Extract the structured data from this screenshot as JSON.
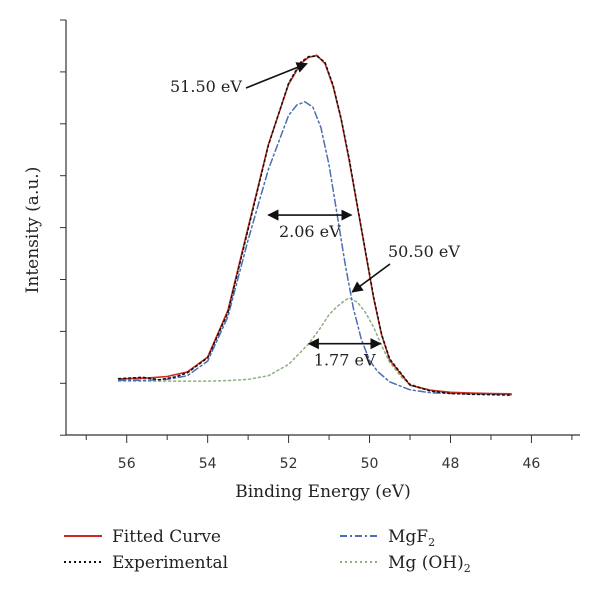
{
  "chart_data": {
    "type": "line",
    "title": "",
    "xlabel": "Binding Energy (eV)",
    "ylabel": "Intensity (a.u.)",
    "x_reversed": true,
    "xlim": [
      57.5,
      44.8
    ],
    "ylim": [
      0,
      100
    ],
    "xticks": [
      56,
      54,
      52,
      50,
      48,
      46
    ],
    "xtick_labels": [
      "56",
      "54",
      "52",
      "50",
      "48",
      "46"
    ],
    "y_tick_labels_shown": false,
    "grid": false,
    "legend_position": "bottom",
    "series": [
      {
        "key": "fitted",
        "name": "Fitted Curve",
        "color": "#cc2a1e",
        "dash": "solid",
        "x": [
          56.2,
          55.5,
          55.0,
          54.5,
          54.0,
          53.5,
          53.0,
          52.5,
          52.0,
          51.7,
          51.5,
          51.3,
          51.1,
          50.9,
          50.7,
          50.5,
          50.3,
          50.1,
          49.9,
          49.7,
          49.5,
          49.0,
          48.5,
          48.0,
          47.5,
          47.0,
          46.5
        ],
        "y": [
          13.5,
          13.7,
          14.1,
          15.2,
          18.8,
          30.0,
          50.0,
          70.0,
          84.5,
          89.5,
          91.0,
          91.5,
          89.5,
          84.0,
          76.0,
          66.0,
          55.0,
          44.0,
          33.0,
          24.0,
          18.0,
          12.0,
          10.8,
          10.3,
          10.1,
          10.0,
          9.9
        ]
      },
      {
        "key": "experimental",
        "name": "Experimental",
        "color": "#111111",
        "dash": "dotted",
        "x": [
          56.2,
          55.6,
          55.2,
          54.8,
          54.5,
          54.0,
          53.5,
          53.0,
          52.5,
          52.0,
          51.7,
          51.5,
          51.3,
          51.1,
          50.9,
          50.7,
          50.5,
          50.3,
          50.1,
          49.9,
          49.7,
          49.5,
          49.0,
          48.5,
          48.0,
          47.5,
          47.0,
          46.5
        ],
        "y": [
          13.6,
          13.9,
          13.3,
          14.0,
          15.0,
          18.6,
          29.5,
          49.5,
          69.8,
          84.8,
          89.8,
          91.2,
          91.3,
          89.8,
          84.3,
          76.2,
          66.4,
          55.2,
          44.3,
          33.3,
          24.2,
          18.3,
          12.1,
          10.6,
          10.0,
          9.8,
          9.7,
          9.6
        ]
      },
      {
        "key": "mgf2",
        "name": "MgF",
        "name_subscript": "2",
        "color": "#4a6fb3",
        "dash": "dashdot",
        "x": [
          56.2,
          55.5,
          55.0,
          54.5,
          54.0,
          53.5,
          53.0,
          52.5,
          52.0,
          51.8,
          51.6,
          51.4,
          51.2,
          51.0,
          50.8,
          50.6,
          50.4,
          50.2,
          50.0,
          49.8,
          49.5,
          49.0,
          48.5,
          48.0,
          47.5,
          47.0,
          46.5
        ],
        "y": [
          13.2,
          13.2,
          13.4,
          14.3,
          17.8,
          28.5,
          47.0,
          64.0,
          77.0,
          79.5,
          80.3,
          79.0,
          74.0,
          65.0,
          53.0,
          41.0,
          30.5,
          23.0,
          18.0,
          15.3,
          12.8,
          10.9,
          10.2,
          10.0,
          9.9,
          9.8,
          9.7
        ]
      },
      {
        "key": "mgoh2",
        "name": "Mg (OH)",
        "name_subscript": "2",
        "color": "#8fb07e",
        "dash": "dotted",
        "x": [
          56.2,
          55.0,
          54.0,
          53.5,
          53.0,
          52.5,
          52.0,
          51.5,
          51.2,
          51.0,
          50.8,
          50.6,
          50.5,
          50.3,
          50.1,
          49.9,
          49.7,
          49.5,
          49.2,
          49.0,
          48.5,
          48.0,
          47.5,
          47.0,
          46.5
        ],
        "y": [
          13.0,
          13.0,
          13.0,
          13.1,
          13.4,
          14.3,
          17.0,
          22.0,
          26.0,
          29.0,
          31.0,
          32.5,
          33.0,
          32.0,
          29.5,
          26.0,
          21.5,
          17.5,
          13.8,
          12.3,
          10.6,
          10.1,
          9.9,
          9.8,
          9.7
        ]
      }
    ],
    "annotations": [
      {
        "key": "peak1",
        "text": "51.50 eV",
        "point_x": 51.5,
        "point_y": 89.0
      },
      {
        "key": "peak2",
        "text": "50.50 eV",
        "point_x": 50.5,
        "point_y": 34.0
      },
      {
        "key": "fwhm1",
        "text": "2.06 eV",
        "x_start": 52.5,
        "x_end": 50.45,
        "y": 53.0
      },
      {
        "key": "fwhm2",
        "text": "1.77 eV",
        "x_start": 51.5,
        "x_end": 49.73,
        "y": 22.0
      }
    ]
  }
}
